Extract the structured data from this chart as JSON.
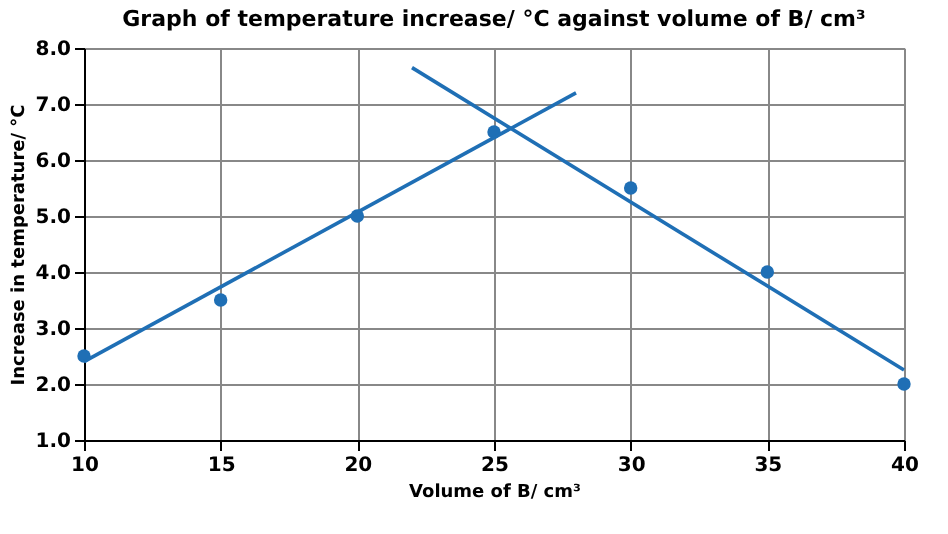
{
  "chart_data": {
    "type": "scatter",
    "title": "Graph of temperature increase/ °C against volume of B/ cm³",
    "xlabel": "Volume of B/ cm³",
    "ylabel": "Increase in temperature/ °C",
    "xlim": [
      10,
      40
    ],
    "xticks": [
      10,
      15,
      20,
      25,
      30,
      35,
      40
    ],
    "ylim": [
      1.0,
      8.0
    ],
    "yticks": [
      {
        "value": 1,
        "label": "1.0"
      },
      {
        "value": 2,
        "label": "2.0"
      },
      {
        "value": 3,
        "label": "3.0"
      },
      {
        "value": 4,
        "label": "4.0"
      },
      {
        "value": 5,
        "label": "5.0"
      },
      {
        "value": 6,
        "label": "6.0"
      },
      {
        "value": 7,
        "label": "7.0"
      },
      {
        "value": 8,
        "label": "8.0"
      }
    ],
    "grid": true,
    "marker": "circle",
    "series": [
      {
        "color": "#1f6fb5",
        "x": [
          10,
          15,
          20,
          25,
          30,
          35,
          40
        ],
        "values": [
          2.5,
          3.5,
          5.0,
          6.5,
          5.5,
          4.0,
          2.0
        ]
      },
      {
        "type": "line",
        "marker": "none",
        "line_style": "solid",
        "color": "#1f6fb5",
        "x": [
          10,
          28
        ],
        "values": [
          2.4,
          7.2
        ]
      },
      {
        "type": "line",
        "marker": "none",
        "line_style": "solid",
        "color": "#1f6fb5",
        "x": [
          22,
          40
        ],
        "values": [
          7.65,
          2.25
        ]
      }
    ]
  }
}
